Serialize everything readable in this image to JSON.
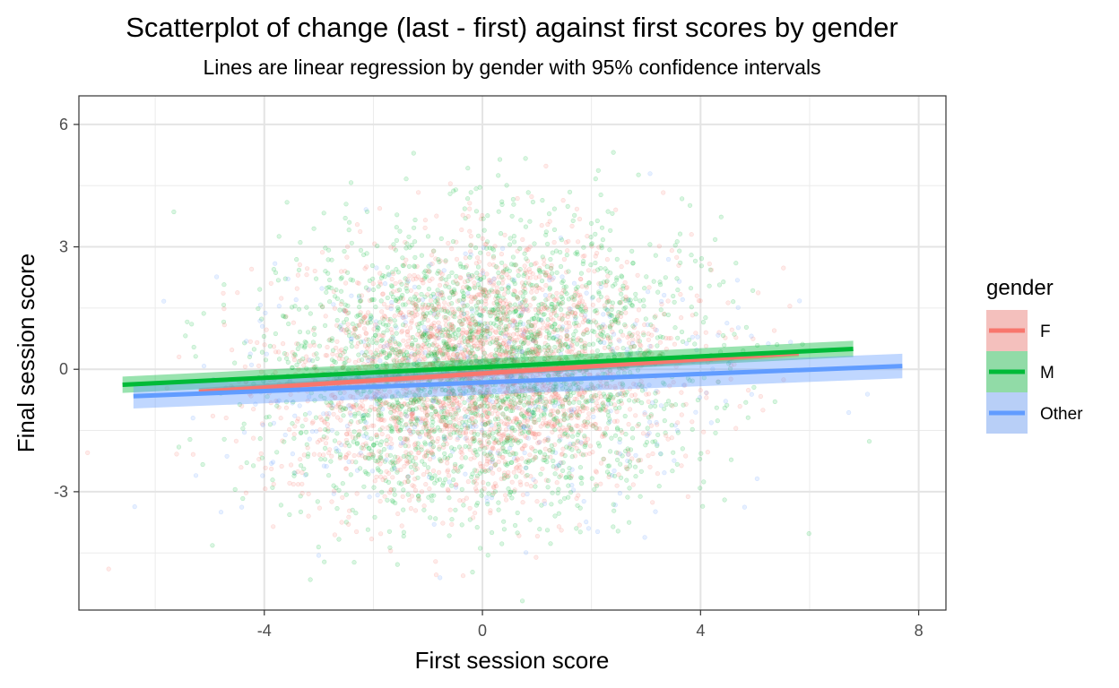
{
  "chart_data": {
    "type": "scatter",
    "title": "Scatterplot of change (last - first) against first scores by gender",
    "subtitle": "Lines are linear regression by gender with 95% confidence intervals",
    "xlabel": "First session score",
    "ylabel": "Final session score",
    "xlim": [
      -7.4,
      8.5
    ],
    "ylim": [
      -5.9,
      6.7
    ],
    "x_ticks": [
      -4,
      0,
      4,
      8
    ],
    "x_tick_labels": [
      "-4",
      "0",
      "4",
      "8"
    ],
    "y_ticks": [
      -3,
      0,
      3,
      6
    ],
    "y_tick_labels": [
      "-3",
      "0",
      "3",
      "6"
    ],
    "grid": true,
    "legend": {
      "title": "gender",
      "position": "right"
    },
    "point_alpha": 0.15,
    "series": [
      {
        "name": "F",
        "color": "#F8766D",
        "count": 2600,
        "x_sd": 1.75,
        "y_sd": 1.5,
        "fit": {
          "x": [
            -5.2,
            5.8
          ],
          "y": [
            -0.55,
            0.4
          ],
          "ci_halfwidth": 0.09
        }
      },
      {
        "name": "M",
        "color": "#00BA38",
        "count": 2400,
        "x_sd": 1.9,
        "y_sd": 1.7,
        "fit": {
          "x": [
            -6.6,
            6.8
          ],
          "y": [
            -0.38,
            0.5
          ],
          "ci_halfwidth": 0.2
        }
      },
      {
        "name": "Other",
        "color": "#619CFF",
        "count": 450,
        "x_sd": 2.4,
        "y_sd": 1.6,
        "fit": {
          "x": [
            -6.4,
            7.7
          ],
          "y": [
            -0.66,
            0.08
          ],
          "ci_halfwidth": 0.3
        }
      }
    ]
  }
}
